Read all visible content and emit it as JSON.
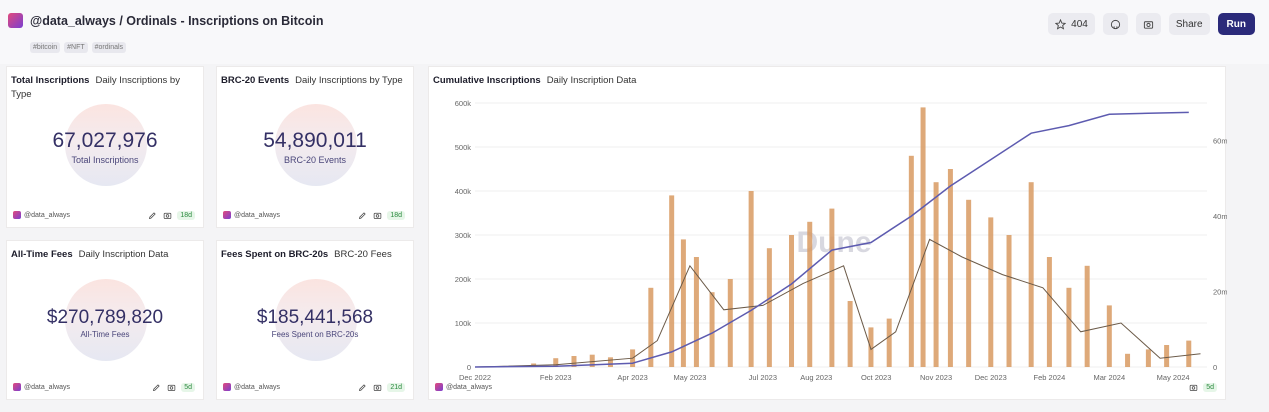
{
  "header": {
    "title": "@data_always / Ordinals - Inscriptions on Bitcoin",
    "tags": [
      "#bitcoin",
      "#NFT",
      "#ordinals"
    ],
    "star_count": "404",
    "share_label": "Share",
    "run_label": "Run"
  },
  "colors": {
    "accent": "#2b2a7a",
    "bar": "#d89a62",
    "cumulative": "#5d5bb0",
    "avg": "#6b5a48"
  },
  "cards": {
    "total": {
      "title": "Total Inscriptions",
      "subtitle": "Daily Inscriptions by Type",
      "value": "67,027,976",
      "label": "Total Inscriptions",
      "user": "@data_always",
      "age": "18d"
    },
    "brc20": {
      "title": "BRC-20 Events",
      "subtitle": "Daily Inscriptions by Type",
      "value": "54,890,011",
      "label": "BRC-20 Events",
      "user": "@data_always",
      "age": "18d"
    },
    "fees": {
      "title": "All-Time Fees",
      "subtitle": "Daily Inscription Data",
      "value": "$270,789,820",
      "label": "All-Time Fees",
      "user": "@data_always",
      "age": "5d"
    },
    "brcfees": {
      "title": "Fees Spent on BRC-20s",
      "subtitle": "BRC-20 Fees",
      "value": "$185,441,568",
      "label": "Fees Spent on BRC-20s",
      "user": "@data_always",
      "age": "21d"
    }
  },
  "chart": {
    "title": "Cumulative Inscriptions",
    "subtitle": "Daily Inscription Data",
    "user": "@data_always",
    "age": "5d",
    "watermark": "Dune"
  },
  "chart_data": {
    "type": "bar",
    "title": "Cumulative Inscriptions",
    "x_ticks": [
      "Dec 2022",
      "Feb 2023",
      "Apr 2023",
      "May 2023",
      "Jul 2023",
      "Aug 2023",
      "Oct 2023",
      "Nov 2023",
      "Dec 2023",
      "Feb 2024",
      "Mar 2024",
      "May 2024"
    ],
    "y_left_ticks": [
      "0",
      "100k",
      "200k",
      "300k",
      "400k",
      "500k",
      "600k"
    ],
    "y_right_ticks": [
      "0",
      "20m",
      "40m",
      "60m"
    ],
    "ylim_left": [
      0,
      600000
    ],
    "ylim_right": [
      0,
      70000000
    ],
    "x_range": [
      "2022-12-01",
      "2024-06-15"
    ],
    "series": [
      {
        "type": "bar",
        "x": [
          "2022-12-15",
          "2023-01-15",
          "2023-02-01",
          "2023-02-15",
          "2023-03-01",
          "2023-03-15",
          "2023-04-01",
          "2023-04-15",
          "2023-05-01",
          "2023-05-10",
          "2023-05-20",
          "2023-06-01",
          "2023-06-15",
          "2023-07-01",
          "2023-07-15",
          "2023-08-01",
          "2023-08-15",
          "2023-09-01",
          "2023-09-15",
          "2023-10-01",
          "2023-10-15",
          "2023-11-01",
          "2023-11-10",
          "2023-11-20",
          "2023-12-01",
          "2023-12-15",
          "2024-01-01",
          "2024-01-15",
          "2024-02-01",
          "2024-02-15",
          "2024-03-01",
          "2024-03-15",
          "2024-04-01",
          "2024-04-15",
          "2024-05-01",
          "2024-05-15",
          "2024-06-01"
        ],
        "values": [
          2000,
          8000,
          20000,
          25000,
          28000,
          22000,
          40000,
          180000,
          390000,
          290000,
          250000,
          170000,
          200000,
          400000,
          270000,
          300000,
          330000,
          360000,
          150000,
          90000,
          110000,
          480000,
          590000,
          420000,
          450000,
          380000,
          340000,
          300000,
          420000,
          250000,
          180000,
          230000,
          140000,
          30000,
          40000,
          50000,
          60000
        ]
      },
      {
        "type": "line",
        "axis": "right",
        "x": [
          "2022-12-01",
          "2023-02-01",
          "2023-04-01",
          "2023-05-01",
          "2023-06-01",
          "2023-07-01",
          "2023-08-01",
          "2023-09-01",
          "2023-10-01",
          "2023-11-01",
          "2023-12-01",
          "2024-01-01",
          "2024-02-01",
          "2024-03-01",
          "2024-04-01",
          "2024-05-01",
          "2024-06-01"
        ],
        "values": [
          0,
          200000,
          1000000,
          4000000,
          9000000,
          15000000,
          22000000,
          31000000,
          33000000,
          40000000,
          48000000,
          55000000,
          62000000,
          64000000,
          67000000,
          67300000,
          67500000
        ]
      },
      {
        "type": "line",
        "x": [
          "2022-12-01",
          "2023-02-01",
          "2023-04-01",
          "2023-04-20",
          "2023-05-15",
          "2023-06-10",
          "2023-07-10",
          "2023-08-10",
          "2023-09-10",
          "2023-10-01",
          "2023-10-20",
          "2023-11-15",
          "2023-12-10",
          "2024-01-10",
          "2024-02-10",
          "2024-03-10",
          "2024-04-10",
          "2024-05-10",
          "2024-06-10"
        ],
        "values": [
          0,
          5000,
          20000,
          60000,
          230000,
          130000,
          140000,
          190000,
          230000,
          40000,
          80000,
          290000,
          250000,
          210000,
          180000,
          80000,
          100000,
          20000,
          30000
        ]
      }
    ]
  }
}
